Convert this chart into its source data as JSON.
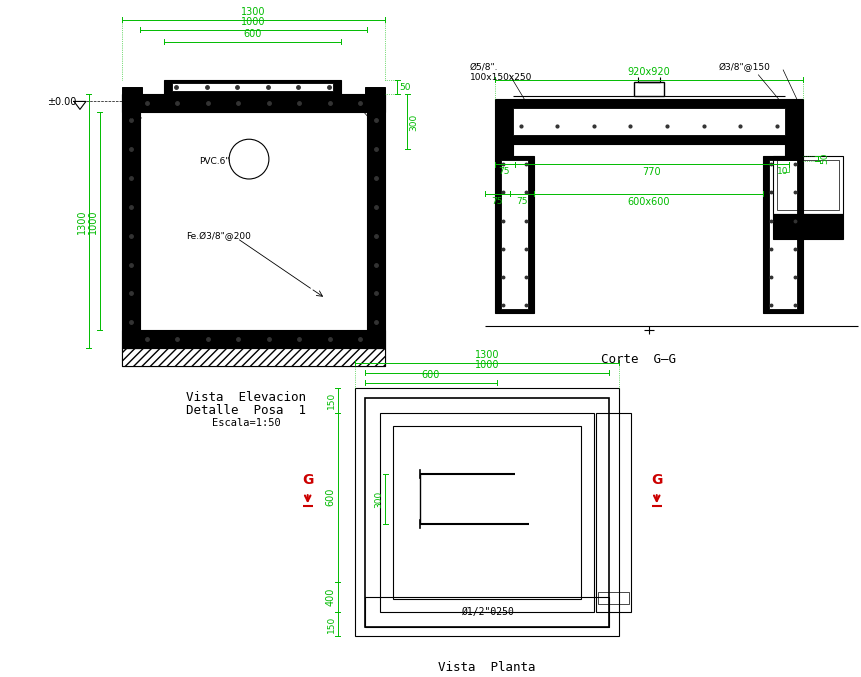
{
  "bg_color": "#ffffff",
  "line_color": "#000000",
  "dim_color": "#00bb00",
  "red_color": "#cc0000",
  "title1": "Vista  Elevacion",
  "title1b": "Detalle  Posa  1",
  "title1c": "Escala=1:50",
  "title2": "Corte  G–G",
  "title3": "Vista  Planta",
  "label_pvc": "PVC.6\"",
  "label_fe": "Fe.Ø3/8\"@200",
  "label_phi1": "Ø5/8\".\n100x150x250",
  "label_phi2": "Ø3/8\"@150",
  "label_phi3": "Ø1/2\"Θ250",
  "label_pm00": "±0.00"
}
